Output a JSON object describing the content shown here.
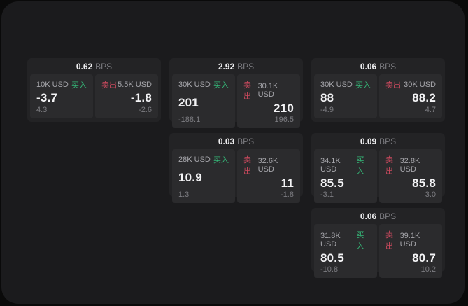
{
  "labels": {
    "buy": "买入",
    "sell": "卖出",
    "bps_unit": "BPS"
  },
  "colors": {
    "page_bg": "#1b1b1d",
    "card_bg": "#232325",
    "panel_bg": "#2b2b2d",
    "buy_green": "#35b878",
    "sell_red": "#cc4a5e"
  },
  "cards": [
    {
      "bps": "0.62",
      "buy": {
        "size": "10K USD",
        "price": "-3.7",
        "delta": "4.3"
      },
      "sell": {
        "size": "5.5K USD",
        "price": "-1.8",
        "delta": "-2.6"
      }
    },
    {
      "bps": "2.92",
      "buy": {
        "size": "30K USD",
        "price": "201",
        "delta": "-188.1"
      },
      "sell": {
        "size": "30.1K USD",
        "price": "210",
        "delta": "196.5"
      }
    },
    {
      "bps": "0.06",
      "buy": {
        "size": "30K USD",
        "price": "88",
        "delta": "-4.9"
      },
      "sell": {
        "size": "30K USD",
        "price": "88.2",
        "delta": "4.7"
      }
    },
    {
      "bps": "0.03",
      "buy": {
        "size": "28K USD",
        "price": "10.9",
        "delta": "1.3"
      },
      "sell": {
        "size": "32.6K USD",
        "price": "11",
        "delta": "-1.8"
      }
    },
    {
      "bps": "0.09",
      "buy": {
        "size": "34.1K USD",
        "price": "85.5",
        "delta": "-3.1"
      },
      "sell": {
        "size": "32.8K USD",
        "price": "85.8",
        "delta": "3.0"
      }
    },
    {
      "bps": "0.06",
      "buy": {
        "size": "31.8K USD",
        "price": "80.5",
        "delta": "-10.8"
      },
      "sell": {
        "size": "39.1K USD",
        "price": "80.7",
        "delta": "10.2"
      }
    }
  ]
}
